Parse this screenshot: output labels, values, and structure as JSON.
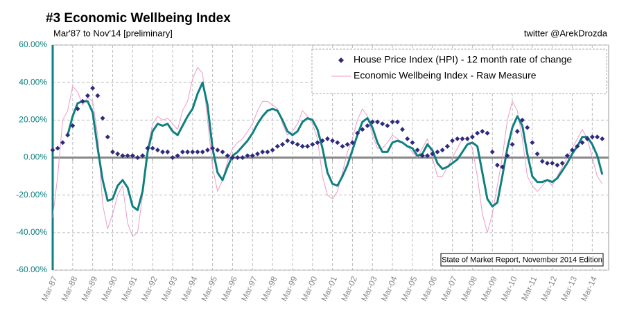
{
  "chart_data": {
    "type": "line",
    "title": "#3 Economic Wellbeing Index",
    "subtitle": "Mar'87 to Nov'14 [preliminary]",
    "credit": "twitter @ArekDrozda",
    "annotation": "State of Market Report, November 2014 Edition",
    "legend": "top-right",
    "grid": true,
    "ylim": [
      -60,
      60
    ],
    "yticks": [
      {
        "value": -60,
        "label": "-60.00%"
      },
      {
        "value": -40,
        "label": "-40.00%"
      },
      {
        "value": -20,
        "label": "-20.00%"
      },
      {
        "value": 0,
        "label": "0.00%"
      },
      {
        "value": 20,
        "label": "20.00%"
      },
      {
        "value": 40,
        "label": "40.00%"
      },
      {
        "value": 60,
        "label": "60.00%"
      }
    ],
    "categories": [
      "Mar-87",
      null,
      null,
      null,
      "Mar-88",
      null,
      null,
      null,
      "Mar-89",
      null,
      null,
      null,
      "Mar-90",
      null,
      null,
      null,
      "Mar-91",
      null,
      null,
      null,
      "Mar-92",
      null,
      null,
      null,
      "Mar-93",
      null,
      null,
      null,
      "Mar-94",
      null,
      null,
      null,
      "Mar-95",
      null,
      null,
      null,
      "Mar-96",
      null,
      null,
      null,
      "Mar-97",
      null,
      null,
      null,
      "Mar-98",
      null,
      null,
      null,
      "Mar-99",
      null,
      null,
      null,
      "Mar-00",
      null,
      null,
      null,
      "Mar-01",
      null,
      null,
      null,
      "Mar-02",
      null,
      null,
      null,
      "Mar-03",
      null,
      null,
      null,
      "Mar-04",
      null,
      null,
      null,
      "Mar-05",
      null,
      null,
      null,
      "Mar-06",
      null,
      null,
      null,
      "Mar-07",
      null,
      null,
      null,
      "Mar-08",
      null,
      null,
      null,
      "Mar-09",
      null,
      null,
      null,
      "Mar-10",
      null,
      null,
      null,
      "Mar-11",
      null,
      null,
      null,
      "Mar-12",
      null,
      null,
      null,
      "Mar-13",
      null,
      null,
      null,
      "Mar-14",
      null,
      null
    ],
    "series": [
      {
        "name": "House Price Index (HPI) - 12 month rate of change",
        "color": "#2e2a7e",
        "marker": "diamond",
        "values": [
          4,
          5,
          8,
          12,
          17,
          26,
          30,
          33,
          37,
          33,
          21,
          11,
          3,
          2,
          1,
          1,
          1,
          0,
          1,
          5,
          5,
          4,
          3,
          3,
          0,
          1,
          3,
          3,
          3,
          3,
          3,
          4,
          5,
          4,
          3,
          1,
          0,
          0,
          0,
          1,
          1,
          2,
          3,
          3,
          4,
          6,
          7,
          9,
          8,
          7,
          6,
          6,
          7,
          8,
          9,
          10,
          9,
          8,
          6,
          7,
          8,
          13,
          15,
          17,
          19,
          19,
          18,
          17,
          19,
          19,
          15,
          10,
          8,
          4,
          1,
          1,
          2,
          3,
          4,
          6,
          9,
          10,
          10,
          10,
          11,
          13,
          14,
          13,
          3,
          -4,
          -5,
          1,
          7,
          14,
          20,
          16,
          8,
          2,
          -2,
          -3,
          -3,
          -4,
          -3,
          1,
          4,
          6,
          8,
          10,
          11,
          11,
          10
        ]
      },
      {
        "name": "Economic Wellbeing Index - Raw Measure",
        "color": "#f09ac8",
        "marker": "line",
        "values": [
          -32,
          -10,
          20,
          25,
          38,
          35,
          28,
          32,
          30,
          12,
          -25,
          -38,
          -30,
          -20,
          -15,
          -35,
          -42,
          -40,
          -20,
          5,
          18,
          22,
          20,
          21,
          18,
          15,
          25,
          30,
          42,
          48,
          45,
          20,
          -5,
          -18,
          -12,
          -2,
          5,
          8,
          10,
          14,
          18,
          25,
          30,
          30,
          28,
          26,
          18,
          12,
          14,
          18,
          25,
          22,
          18,
          10,
          -10,
          -20,
          -22,
          -18,
          -8,
          3,
          10,
          20,
          26,
          22,
          12,
          5,
          5,
          8,
          12,
          10,
          8,
          6,
          3,
          0,
          5,
          10,
          0,
          -10,
          -10,
          -5,
          0,
          5,
          10,
          10,
          5,
          -10,
          -30,
          -40,
          -30,
          -15,
          0,
          20,
          30,
          25,
          10,
          -10,
          -15,
          -18,
          -15,
          -12,
          -15,
          -10,
          -5,
          0,
          5,
          10,
          15,
          10,
          0,
          -10,
          -14
        ]
      },
      {
        "color": "#0e8080",
        "marker": "thick-line",
        "values": [
          null,
          null,
          null,
          12,
          22,
          29,
          30,
          30,
          24,
          5,
          -12,
          -23,
          -22,
          -15,
          -12,
          -16,
          -26,
          -28,
          -18,
          3,
          14,
          18,
          17,
          18,
          14,
          12,
          17,
          22,
          26,
          34,
          40,
          28,
          5,
          -8,
          -12,
          -5,
          1,
          3,
          6,
          9,
          13,
          18,
          22,
          25,
          26,
          25,
          20,
          14,
          12,
          14,
          19,
          21,
          20,
          15,
          5,
          -8,
          -14,
          -15,
          -10,
          -4,
          4,
          12,
          19,
          21,
          16,
          8,
          3,
          3,
          8,
          9,
          8,
          6,
          5,
          1,
          2,
          7,
          4,
          -3,
          -6,
          -5,
          -3,
          -1,
          3,
          7,
          8,
          6,
          -8,
          -22,
          -26,
          -24,
          -10,
          5,
          16,
          22,
          17,
          2,
          -10,
          -13,
          -13,
          -12,
          -13,
          -11,
          -7,
          -3,
          2,
          6,
          11,
          11,
          7,
          1,
          -9
        ]
      }
    ]
  }
}
